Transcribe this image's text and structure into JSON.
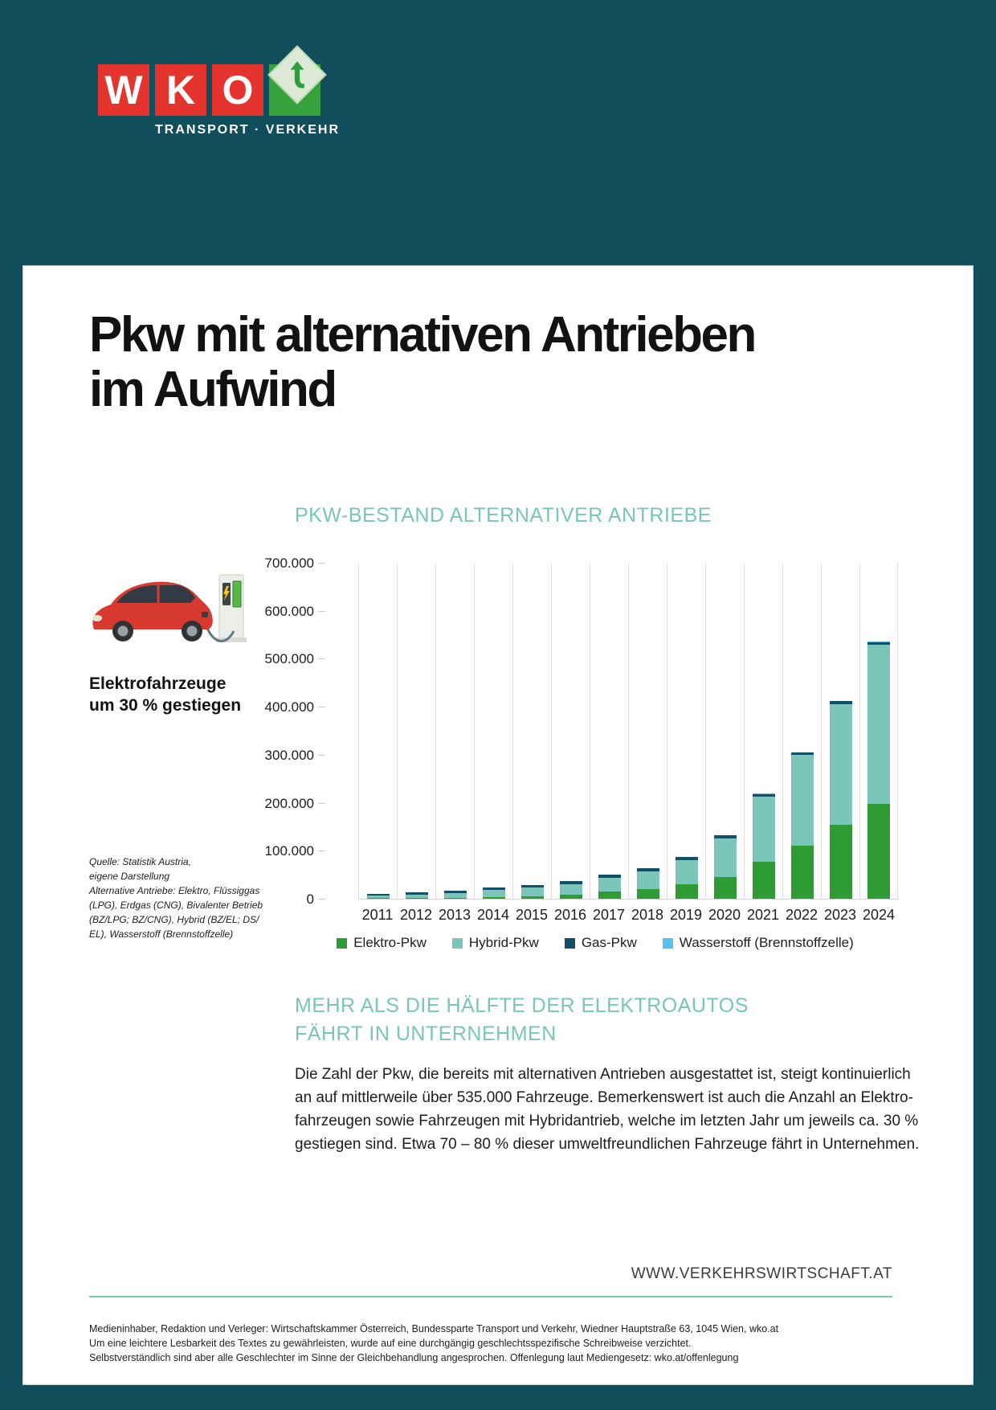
{
  "colors": {
    "page_bg": "#114e5c",
    "brand_red": "#e5332d",
    "brand_green": "#35a23c",
    "teal_heading": "#79c6b8",
    "rule": "#7fc6ba",
    "grid": "#dedede",
    "text": "#1d1d1b"
  },
  "brand": {
    "letters": [
      "W",
      "K",
      "O"
    ],
    "subtitle": "TRANSPORT · VERKEHR"
  },
  "title": {
    "line1": "Pkw mit alternativen Antrieben",
    "line2": "im Aufwind"
  },
  "sidebar": {
    "illustration": "red-electric-car-at-charging-station",
    "highlight_line1": "Elektrofahrzeuge",
    "highlight_line2": "um 30 % gestiegen",
    "source_lines": [
      "Quelle: Statistik Austria,",
      "eigene Darstellung",
      "Alternative Antriebe: Elektro, Flüssiggas",
      "(LPG), Erdgas (CNG), Bivalenter Betrieb",
      "(BZ/LPG; BZ/CNG), Hybrid (BZ/EL; DS/",
      "EL), Wasserstoff (Brennstoffzelle)"
    ]
  },
  "chart_data": {
    "type": "bar",
    "stacked": true,
    "title": "PKW-BESTAND ALTERNATIVER ANTRIEBE",
    "categories": [
      "2011",
      "2012",
      "2013",
      "2014",
      "2015",
      "2016",
      "2017",
      "2018",
      "2019",
      "2020",
      "2021",
      "2022",
      "2023",
      "2024"
    ],
    "series": [
      {
        "name": "Elektro-Pkw",
        "color": "#2e9b35",
        "values": [
          900,
          1400,
          2100,
          3400,
          5000,
          9100,
          14600,
          20800,
          29500,
          44500,
          76500,
          110300,
          153800,
          198000
        ]
      },
      {
        "name": "Hybrid-Pkw",
        "color": "#7cc5b9",
        "values": [
          5100,
          6900,
          8900,
          15100,
          18100,
          21500,
          29000,
          36900,
          51300,
          81300,
          135400,
          188700,
          252200,
          331500
        ]
      },
      {
        "name": "Gas-Pkw",
        "color": "#134f68",
        "values": [
          4000,
          4700,
          5000,
          5500,
          6000,
          6500,
          6500,
          6500,
          6500,
          6500,
          6500,
          6000,
          6000,
          5500
        ]
      },
      {
        "name": "Wasserstoff (Brennstoffzelle)",
        "color": "#54c2f0",
        "values": [
          0,
          0,
          0,
          0,
          100,
          100,
          100,
          200,
          300,
          300,
          400,
          500,
          500,
          600
        ]
      }
    ],
    "ylim": [
      0,
      700000
    ],
    "ytick_labels": [
      "700.000",
      "600.000",
      "500.000",
      "400.000",
      "300.000",
      "200.000",
      "100.000",
      "0"
    ],
    "grid": "vertical-only",
    "legend_position": "bottom"
  },
  "section": {
    "heading_line1": "MEHR ALS DIE HÄLFTE DER ELEKTROAUTOS",
    "heading_line2": "FÄHRT IN UNTERNEHMEN",
    "paragraph_lines": [
      "Die Zahl der Pkw, die bereits mit alternativen Antrieben ausgestattet ist, steigt kontinuierlich",
      "an auf mittlerweile über 535.000 Fahrzeuge. Bemerkenswert ist auch die Anzahl an Elektro-",
      "fahrzeugen sowie Fahrzeugen mit Hybridantrieb, welche im letzten Jahr um jeweils ca. 30 %",
      "gestiegen sind. Etwa 70 – 80 % dieser umweltfreundlichen Fahrzeuge fährt in Unternehmen."
    ]
  },
  "footer": {
    "website": "WWW.VERKEHRSWIRTSCHAFT.AT",
    "imprint_lines": [
      "Medieninhaber, Redaktion und Verleger: Wirtschaftskammer Österreich, Bundessparte Transport und Verkehr, Wiedner Hauptstraße 63, 1045 Wien, wko.at",
      "Um eine leichtere Lesbarkeit des Textes zu gewährleisten, wurde auf eine durchgängig geschlechtsspezifische Schreibweise verzichtet.",
      "Selbstverständlich sind aber alle Geschlechter im Sinne der Gleichbehandlung angesprochen. Offenlegung laut Mediengesetz: wko.at/offenlegung"
    ]
  }
}
